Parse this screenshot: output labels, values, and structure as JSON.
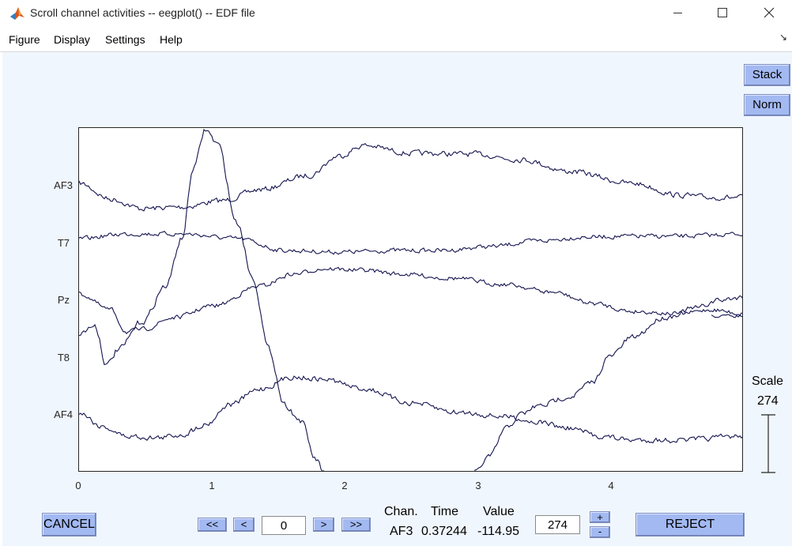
{
  "window": {
    "title": "Scroll channel activities -- eegplot() -- EDF file",
    "icon": "matlab-icon",
    "controls": [
      "minimize-icon",
      "maximize-icon",
      "close-icon"
    ]
  },
  "menu": {
    "items": [
      "Figure",
      "Display",
      "Settings",
      "Help"
    ],
    "toolbar_toggle": "↘"
  },
  "side_buttons": {
    "stack": "Stack",
    "norm": "Norm"
  },
  "plot": {
    "channels": [
      "AF3",
      "T7",
      "Pz",
      "T8",
      "AF4"
    ],
    "x_ticks": [
      "0",
      "1",
      "2",
      "3",
      "4"
    ],
    "xlim": [
      0,
      4.97
    ],
    "line_color": "#141450"
  },
  "scale": {
    "label": "Scale",
    "value": "274"
  },
  "bottom": {
    "cancel": "CANCEL",
    "nav_first": "<<",
    "nav_prev": "<",
    "window_start": "0",
    "nav_next": ">",
    "nav_last": ">>",
    "chan_header": "Chan.",
    "time_header": "Time",
    "value_header": "Value",
    "chan_value": "AF3",
    "time_value": "0.37244",
    "value_value": "-114.95",
    "scale_input": "274",
    "plus": "+",
    "minus": "-",
    "reject": "REJECT"
  }
}
